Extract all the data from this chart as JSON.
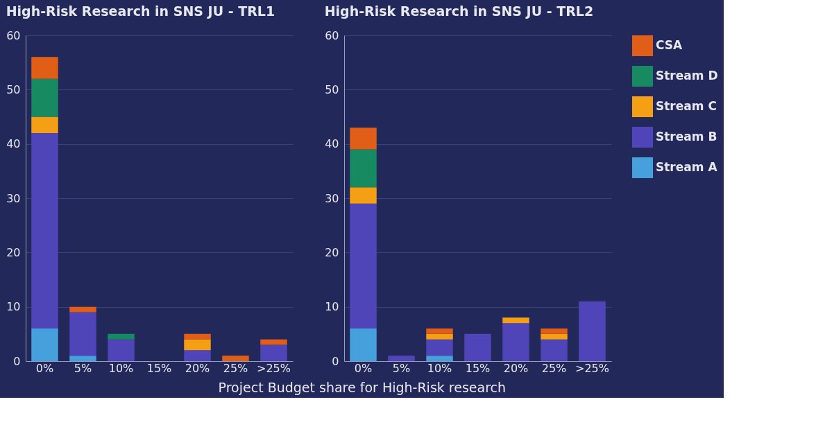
{
  "chart_data": [
    {
      "type": "bar",
      "title": "High-Risk Research in SNS JU - TRL1",
      "xlabel": "Project Budget share for High-Risk research",
      "categories": [
        "0%",
        "5%",
        "10%",
        "15%",
        "20%",
        "25%",
        ">25%"
      ],
      "stacked": true,
      "ylim": [
        0,
        60
      ],
      "yticks": [
        0,
        10,
        20,
        30,
        40,
        50,
        60
      ],
      "grid": "y",
      "legend": "right",
      "series": [
        {
          "name": "Stream A",
          "color": "#45a0dc",
          "values": [
            6,
            1,
            0,
            0,
            0,
            0,
            0
          ]
        },
        {
          "name": "Stream B",
          "color": "#4f44b8",
          "values": [
            36,
            8,
            4,
            0,
            2,
            0,
            3
          ]
        },
        {
          "name": "Stream C",
          "color": "#f59f14",
          "values": [
            3,
            0,
            0,
            0,
            2,
            0,
            0
          ]
        },
        {
          "name": "Stream D",
          "color": "#178a62",
          "values": [
            7,
            0,
            1,
            0,
            0,
            0,
            0
          ]
        },
        {
          "name": "CSA",
          "color": "#e05e18",
          "values": [
            4,
            1,
            0,
            0,
            1,
            1,
            1
          ]
        }
      ]
    },
    {
      "type": "bar",
      "title": "High-Risk Research in SNS JU - TRL2",
      "categories": [
        "0%",
        "5%",
        "10%",
        "15%",
        "20%",
        "25%",
        ">25%"
      ],
      "stacked": true,
      "ylim": [
        0,
        60
      ],
      "yticks": [
        0,
        10,
        20,
        30,
        40,
        50,
        60
      ],
      "grid": "y",
      "legend": "right",
      "series": [
        {
          "name": "Stream A",
          "color": "#45a0dc",
          "values": [
            6,
            0,
            1,
            0,
            0,
            0,
            0
          ]
        },
        {
          "name": "Stream B",
          "color": "#4f44b8",
          "values": [
            23,
            1,
            3,
            5,
            7,
            4,
            11
          ]
        },
        {
          "name": "Stream C",
          "color": "#f59f14",
          "values": [
            3,
            0,
            1,
            0,
            1,
            1,
            0
          ]
        },
        {
          "name": "Stream D",
          "color": "#178a62",
          "values": [
            7,
            0,
            0,
            0,
            0,
            0,
            0
          ]
        },
        {
          "name": "CSA",
          "color": "#e05e18",
          "values": [
            4,
            0,
            1,
            0,
            0,
            1,
            0
          ]
        }
      ]
    }
  ]
}
